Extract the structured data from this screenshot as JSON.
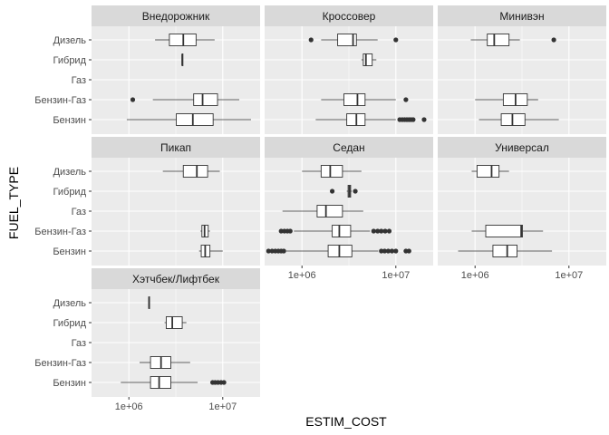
{
  "chart_data": {
    "type": "boxplot",
    "xlabel": "ESTIM_COST",
    "ylabel": "FUEL_TYPE",
    "x_scale": "log10",
    "xlim": [
      400000,
      25000000
    ],
    "x_ticks": [
      {
        "value": 1000000,
        "label": "1e+06"
      },
      {
        "value": 10000000,
        "label": "1e+07"
      }
    ],
    "categories": [
      "Дизель",
      "Гибрид",
      "Газ",
      "Бензин-Газ",
      "Бензин"
    ],
    "grid": true,
    "facets": [
      {
        "name": "Внедорожник",
        "boxes": [
          {
            "category": "Дизель",
            "whisker_low": 1900000,
            "q1": 2700000,
            "median": 3800000,
            "q3": 5200000,
            "whisker_high": 8200000,
            "outliers": []
          },
          {
            "category": "Гибрид",
            "whisker_low": 3700000,
            "q1": 3700000,
            "median": 3700000,
            "q3": 3700000,
            "whisker_high": 3700000,
            "outliers": []
          },
          {
            "category": "Бензин-Газ",
            "whisker_low": 1800000,
            "q1": 4900000,
            "median": 6100000,
            "q3": 8800000,
            "whisker_high": 15000000,
            "outliers": [
              1100000
            ]
          },
          {
            "category": "Бензин",
            "whisker_low": 950000,
            "q1": 3200000,
            "median": 4800000,
            "q3": 7900000,
            "whisker_high": 20000000,
            "outliers": []
          }
        ]
      },
      {
        "name": "Кроссовер",
        "boxes": [
          {
            "category": "Дизель",
            "whisker_low": 1600000,
            "q1": 2400000,
            "median": 3500000,
            "q3": 3800000,
            "whisker_high": 6400000,
            "outliers": [
              1250000,
              10000000
            ]
          },
          {
            "category": "Гибрид",
            "whisker_low": 4300000,
            "q1": 4500000,
            "median": 4800000,
            "q3": 5600000,
            "whisker_high": 6200000,
            "outliers": []
          },
          {
            "category": "Бензин-Газ",
            "whisker_low": 1600000,
            "q1": 2800000,
            "median": 3900000,
            "q3": 4700000,
            "whisker_high": 10000000,
            "outliers": [
              12800000
            ]
          },
          {
            "category": "Бензин",
            "whisker_low": 1400000,
            "q1": 3000000,
            "median": 3800000,
            "q3": 4700000,
            "whisker_high": 10000000,
            "outliers": [
              11000000,
              11700000,
              12400000,
              13100000,
              13800000,
              14500000,
              15300000,
              20000000
            ]
          }
        ]
      },
      {
        "name": "Минивэн",
        "boxes": [
          {
            "category": "Дизель",
            "whisker_low": 900000,
            "q1": 1350000,
            "median": 1600000,
            "q3": 2300000,
            "whisker_high": 3000000,
            "outliers": [
              6900000
            ]
          },
          {
            "category": "Бензин-Газ",
            "whisker_low": 1000000,
            "q1": 2000000,
            "median": 2700000,
            "q3": 3600000,
            "whisker_high": 4700000,
            "outliers": []
          },
          {
            "category": "Бензин",
            "whisker_low": 1100000,
            "q1": 1900000,
            "median": 2500000,
            "q3": 3400000,
            "whisker_high": 7800000,
            "outliers": []
          }
        ]
      },
      {
        "name": "Пикап",
        "boxes": [
          {
            "category": "Дизель",
            "whisker_low": 2300000,
            "q1": 3800000,
            "median": 5300000,
            "q3": 6900000,
            "whisker_high": 9300000,
            "outliers": []
          },
          {
            "category": "Бензин-Газ",
            "whisker_low": 5800000,
            "q1": 6000000,
            "median": 6400000,
            "q3": 7000000,
            "whisker_high": 7300000,
            "outliers": []
          },
          {
            "category": "Бензин",
            "whisker_low": 5600000,
            "q1": 5900000,
            "median": 6500000,
            "q3": 7300000,
            "whisker_high": 10000000,
            "outliers": []
          }
        ]
      },
      {
        "name": "Седан",
        "boxes": [
          {
            "category": "Дизель",
            "whisker_low": 1000000,
            "q1": 1600000,
            "median": 2000000,
            "q3": 2700000,
            "whisker_high": 4300000,
            "outliers": []
          },
          {
            "category": "Гибрид",
            "whisker_low": 3000000,
            "q1": 3100000,
            "median": 3200000,
            "q3": 3300000,
            "whisker_high": 3400000,
            "outliers": [
              2100000,
              3700000
            ]
          },
          {
            "category": "Газ",
            "whisker_low": 620000,
            "q1": 1450000,
            "median": 1800000,
            "q3": 2700000,
            "whisker_high": 4500000,
            "outliers": []
          },
          {
            "category": "Бензин-Газ",
            "whisker_low": 820000,
            "q1": 2100000,
            "median": 2500000,
            "q3": 3300000,
            "whisker_high": 5300000,
            "outliers": [
              600000,
              650000,
              700000,
              750000,
              5800000,
              6400000,
              7000000,
              7700000,
              8500000
            ]
          },
          {
            "category": "Бензин",
            "whisker_low": 680000,
            "q1": 1900000,
            "median": 2500000,
            "q3": 3400000,
            "whisker_high": 6500000,
            "outliers": [
              440000,
              480000,
              520000,
              560000,
              600000,
              640000,
              7000000,
              7600000,
              8300000,
              9100000,
              10000000,
              12800000,
              13800000
            ]
          }
        ]
      },
      {
        "name": "Универсал",
        "boxes": [
          {
            "category": "Дизель",
            "whisker_low": 920000,
            "q1": 1050000,
            "median": 1500000,
            "q3": 1800000,
            "whisker_high": 2300000,
            "outliers": []
          },
          {
            "category": "Бензин-Газ",
            "whisker_low": 920000,
            "q1": 1300000,
            "median": 3100000,
            "q3": 3200000,
            "whisker_high": 5300000,
            "outliers": []
          },
          {
            "category": "Бензин",
            "whisker_low": 660000,
            "q1": 1550000,
            "median": 2200000,
            "q3": 2800000,
            "whisker_high": 6600000,
            "outliers": []
          }
        ]
      },
      {
        "name": "Хэтчбек/Лифтбек",
        "boxes": [
          {
            "category": "Дизель",
            "whisker_low": 1620000,
            "q1": 1630000,
            "median": 1640000,
            "q3": 1660000,
            "whisker_high": 1670000,
            "outliers": []
          },
          {
            "category": "Гибрид",
            "whisker_low": 2400000,
            "q1": 2500000,
            "median": 2900000,
            "q3": 3700000,
            "whisker_high": 4100000,
            "outliers": []
          },
          {
            "category": "Бензин-Газ",
            "whisker_low": 1300000,
            "q1": 1700000,
            "median": 2200000,
            "q3": 2800000,
            "whisker_high": 4500000,
            "outliers": []
          },
          {
            "category": "Бензин",
            "whisker_low": 820000,
            "q1": 1700000,
            "median": 2100000,
            "q3": 2800000,
            "whisker_high": 5400000,
            "outliers": [
              7800000,
              8300000,
              8900000,
              9600000,
              10300000
            ]
          }
        ]
      }
    ]
  },
  "colors": {
    "panel_bg": "#ebebeb",
    "strip_bg": "#d9d9d9",
    "grid_major": "#ffffff",
    "box_fill": "#ffffff",
    "box_line": "#333333",
    "point": "#333333"
  }
}
